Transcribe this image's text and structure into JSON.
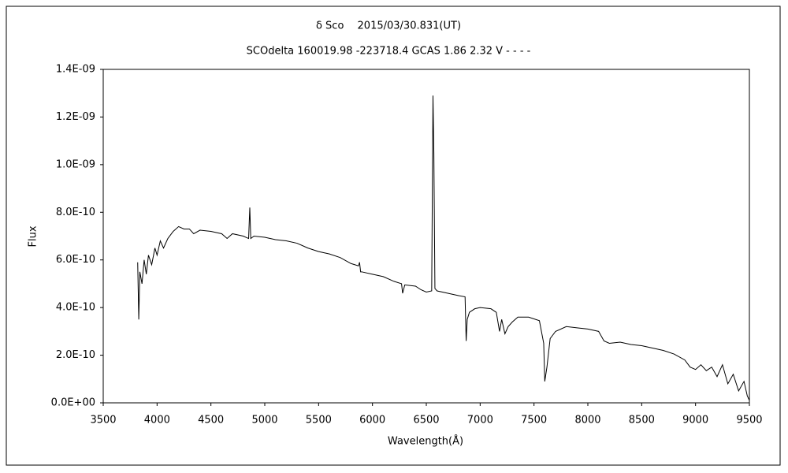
{
  "chart_data": {
    "type": "line",
    "title": "δ Sco　 2015/03/30.831(UT)",
    "subtitle": "SCOdelta 160019.98 -223718.4 GCAS 1.86 2.32 V - - - -",
    "x_label": "Wavelength(Å)",
    "y_label": "Flux",
    "color": "#000000",
    "xlim": [
      3500,
      9500
    ],
    "xticks": [
      3500,
      4000,
      4500,
      5000,
      5500,
      6000,
      6500,
      7000,
      7500,
      8000,
      8500,
      9000,
      9500
    ],
    "ylim": [
      0,
      1.4e-09
    ],
    "yticks": [
      {
        "value": 0,
        "label": "0.0E+00"
      },
      {
        "value": 2e-10,
        "label": "2.0E-10"
      },
      {
        "value": 4e-10,
        "label": "4.0E-10"
      },
      {
        "value": 6e-10,
        "label": "6.0E-10"
      },
      {
        "value": 8e-10,
        "label": "8.0E-10"
      },
      {
        "value": 1e-09,
        "label": "1.0E-09"
      },
      {
        "value": 1.2e-09,
        "label": "1.2E-09"
      },
      {
        "value": 1.4e-09,
        "label": "1.4E-09"
      }
    ],
    "x": [
      3820,
      3830,
      3840,
      3860,
      3880,
      3900,
      3920,
      3950,
      3980,
      4000,
      4030,
      4060,
      4100,
      4150,
      4200,
      4250,
      4300,
      4340,
      4400,
      4500,
      4600,
      4650,
      4700,
      4800,
      4850,
      4861,
      4870,
      4900,
      5000,
      5100,
      5200,
      5300,
      5400,
      5500,
      5600,
      5700,
      5800,
      5870,
      5880,
      5890,
      5900,
      6000,
      6100,
      6200,
      6270,
      6280,
      6300,
      6400,
      6450,
      6500,
      6550,
      6562,
      6570,
      6580,
      6600,
      6700,
      6800,
      6860,
      6870,
      6880,
      6900,
      6950,
      7000,
      7100,
      7150,
      7180,
      7200,
      7230,
      7260,
      7300,
      7350,
      7450,
      7550,
      7590,
      7600,
      7620,
      7650,
      7700,
      7800,
      7900,
      8000,
      8100,
      8150,
      8200,
      8300,
      8400,
      8500,
      8600,
      8700,
      8800,
      8900,
      8950,
      9000,
      9050,
      9100,
      9150,
      9200,
      9250,
      9300,
      9350,
      9400,
      9450,
      9480,
      9500
    ],
    "values": [
      5.9e-10,
      3.5e-10,
      5.5e-10,
      5e-10,
      6e-10,
      5.4e-10,
      6.2e-10,
      5.8e-10,
      6.5e-10,
      6.2e-10,
      6.8e-10,
      6.5e-10,
      6.9e-10,
      7.2e-10,
      7.4e-10,
      7.3e-10,
      7.3e-10,
      7.1e-10,
      7.25e-10,
      7.2e-10,
      7.1e-10,
      6.9e-10,
      7.1e-10,
      7e-10,
      6.9e-10,
      8.2e-10,
      6.9e-10,
      7e-10,
      6.95e-10,
      6.85e-10,
      6.8e-10,
      6.7e-10,
      6.5e-10,
      6.35e-10,
      6.25e-10,
      6.1e-10,
      5.85e-10,
      5.75e-10,
      5.9e-10,
      5.5e-10,
      5.5e-10,
      5.4e-10,
      5.3e-10,
      5.1e-10,
      5e-10,
      4.6e-10,
      4.95e-10,
      4.9e-10,
      4.75e-10,
      4.65e-10,
      4.7e-10,
      1.29e-09,
      1.05e-09,
      4.8e-10,
      4.7e-10,
      4.6e-10,
      4.5e-10,
      4.45e-10,
      2.6e-10,
      3.5e-10,
      3.8e-10,
      3.95e-10,
      4e-10,
      3.95e-10,
      3.8e-10,
      3e-10,
      3.5e-10,
      2.9e-10,
      3.2e-10,
      3.4e-10,
      3.6e-10,
      3.6e-10,
      3.45e-10,
      2.5e-10,
      9e-11,
      1.5e-10,
      2.7e-10,
      3e-10,
      3.2e-10,
      3.15e-10,
      3.1e-10,
      3e-10,
      2.6e-10,
      2.5e-10,
      2.55e-10,
      2.45e-10,
      2.4e-10,
      2.3e-10,
      2.2e-10,
      2.05e-10,
      1.8e-10,
      1.5e-10,
      1.4e-10,
      1.6e-10,
      1.35e-10,
      1.5e-10,
      1.1e-10,
      1.6e-10,
      8e-11,
      1.2e-10,
      5e-11,
      9e-11,
      3e-11,
      1e-11
    ]
  }
}
